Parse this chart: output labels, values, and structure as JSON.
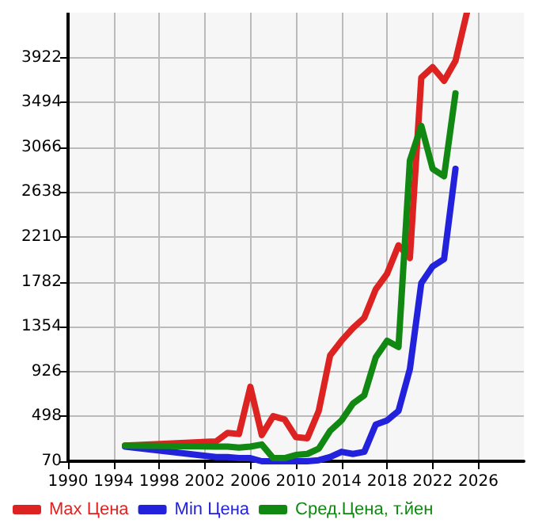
{
  "chart_data": {
    "type": "line",
    "x": [
      1995,
      2003,
      2004,
      2005,
      2006,
      2007,
      2008,
      2009,
      2010,
      2011,
      2012,
      2013,
      2014,
      2015,
      2016,
      2017,
      2018,
      2019,
      2020,
      2021,
      2022,
      2023,
      2024,
      2025
    ],
    "series": [
      {
        "name": "Max Цена",
        "color": "#dd2222",
        "values": [
          220,
          260,
          340,
          330,
          780,
          320,
          500,
          470,
          300,
          290,
          550,
          1080,
          1220,
          1340,
          1440,
          1710,
          1860,
          2130,
          2010,
          3730,
          3830,
          3700,
          3890,
          4350
        ]
      },
      {
        "name": "Min Цена",
        "color": "#2222dd",
        "values": [
          210,
          110,
          110,
          100,
          100,
          70,
          70,
          70,
          70,
          70,
          80,
          110,
          160,
          140,
          160,
          420,
          460,
          550,
          950,
          1770,
          1930,
          2000,
          2860,
          null
        ]
      },
      {
        "name": "Сред.Цена, т.йен",
        "color": "#118811",
        "values": [
          220,
          210,
          210,
          200,
          210,
          230,
          100,
          100,
          130,
          140,
          190,
          360,
          460,
          620,
          700,
          1060,
          1220,
          1160,
          2940,
          3270,
          2860,
          2790,
          3580,
          null
        ]
      }
    ],
    "xlim": [
      1990,
      2030
    ],
    "xticks": [
      1990,
      1994,
      1998,
      2002,
      2006,
      2010,
      2014,
      2018,
      2022,
      2026
    ],
    "ylim": [
      70,
      4350
    ],
    "yticks": [
      70,
      498,
      926,
      1354,
      1782,
      2210,
      2638,
      3066,
      3494,
      3922
    ],
    "grid": true,
    "legend": "bottom",
    "marker": "none",
    "line_style": "solid"
  }
}
